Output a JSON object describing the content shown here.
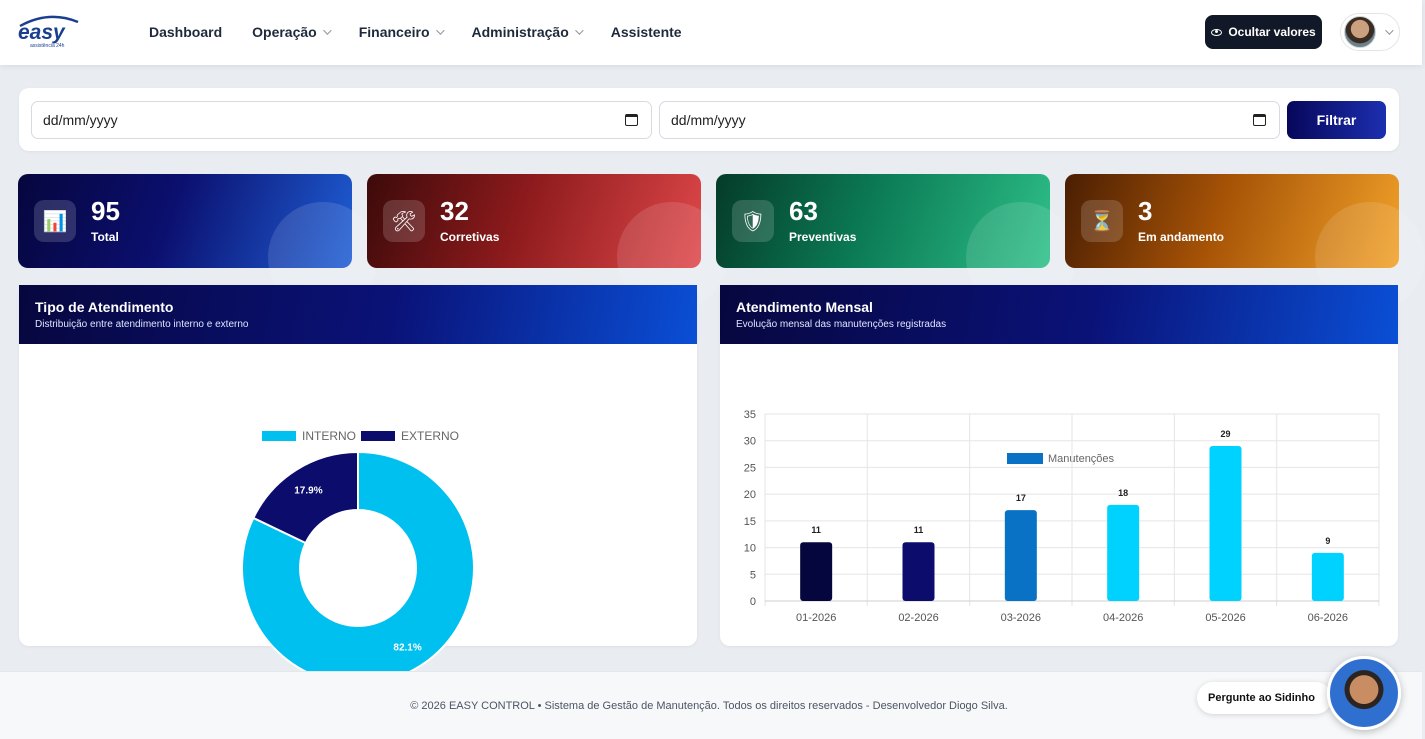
{
  "header": {
    "logo_text": "easy",
    "logo_sub": "assistência 24h",
    "nav": [
      {
        "label": "Dashboard",
        "dropdown": false
      },
      {
        "label": "Operação",
        "dropdown": true
      },
      {
        "label": "Financeiro",
        "dropdown": true
      },
      {
        "label": "Administração",
        "dropdown": true
      },
      {
        "label": "Assistente",
        "dropdown": false
      }
    ],
    "hide_values_label": "Ocultar valores"
  },
  "filter": {
    "start_date_placeholder": "dd/mm/yyyy",
    "end_date_placeholder": "dd/mm/yyyy",
    "button_label": "Filtrar"
  },
  "stats": [
    {
      "value": "95",
      "label": "Total",
      "icon": "bar-chart-icon",
      "glyph": "📊"
    },
    {
      "value": "32",
      "label": "Corretivas",
      "icon": "tools-icon",
      "glyph": "🛠"
    },
    {
      "value": "63",
      "label": "Preventivas",
      "icon": "shield-icon",
      "glyph": "🛡"
    },
    {
      "value": "3",
      "label": "Em andamento",
      "icon": "hourglass-icon",
      "glyph": "⏳"
    }
  ],
  "panels": {
    "tipo": {
      "title": "Tipo de Atendimento",
      "subtitle": "Distribuição entre atendimento interno e externo"
    },
    "mensal": {
      "title": "Atendimento Mensal",
      "subtitle": "Evolução mensal das manutenções registradas"
    }
  },
  "chart_data": [
    {
      "type": "pie",
      "title": "",
      "legend": "top",
      "slices": [
        {
          "label": "INTERNO",
          "value": 82.1,
          "display": "82.1%",
          "color": "#00c0ef"
        },
        {
          "label": "EXTERNO",
          "value": 17.9,
          "display": "17.9%",
          "color": "#0c0c6d"
        }
      ]
    },
    {
      "type": "bar",
      "title": "",
      "legend": "top",
      "categories": [
        "01-2026",
        "02-2026",
        "03-2026",
        "04-2026",
        "05-2026",
        "06-2026"
      ],
      "series": [
        {
          "name": "Manutenções",
          "values": [
            11,
            11,
            17,
            18,
            29,
            9
          ]
        }
      ],
      "bar_colors": [
        "#06063e",
        "#0c0c6d",
        "#0a72c4",
        "#00d2ff",
        "#00d2ff",
        "#00d2ff"
      ],
      "yticks": [
        0,
        5,
        10,
        15,
        20,
        25,
        30,
        35
      ],
      "ylim": [
        0,
        35
      ],
      "grid": true,
      "xlabel": "",
      "ylabel": ""
    }
  ],
  "footer": {
    "text": "© 2026 EASY CONTROL • Sistema de Gestão de Manutenção. Todos os direitos reservados - Desenvolvedor Diogo Silva."
  },
  "assistant": {
    "label": "Pergunte ao Sidinho"
  }
}
